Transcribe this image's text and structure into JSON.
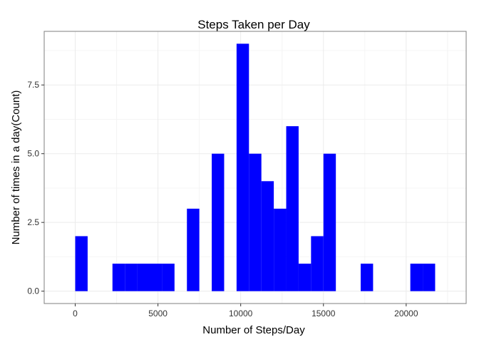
{
  "chart_data": {
    "type": "bar",
    "title": "Steps Taken per Day",
    "xlabel": "Number of Steps/Day",
    "ylabel": "Number of times in a day(Count)",
    "bar_color": "#0000ff",
    "bin_width": 750,
    "xlim": [
      -1875,
      23625
    ],
    "ylim": [
      -0.45,
      9.45
    ],
    "x_ticks": [
      0,
      5000,
      10000,
      15000,
      20000
    ],
    "x_tick_labels": [
      "0",
      "5000",
      "10000",
      "15000",
      "20000"
    ],
    "y_ticks": [
      0,
      2.5,
      5,
      7.5
    ],
    "y_tick_labels": [
      "0.0",
      "2.5",
      "5.0",
      "7.5"
    ],
    "grid": true,
    "bins": [
      {
        "x": 0,
        "count": 2
      },
      {
        "x": 750,
        "count": 0
      },
      {
        "x": 1500,
        "count": 0
      },
      {
        "x": 2250,
        "count": 1
      },
      {
        "x": 3000,
        "count": 1
      },
      {
        "x": 3750,
        "count": 1
      },
      {
        "x": 4500,
        "count": 1
      },
      {
        "x": 5250,
        "count": 1
      },
      {
        "x": 6000,
        "count": 0
      },
      {
        "x": 6750,
        "count": 3
      },
      {
        "x": 7500,
        "count": 0
      },
      {
        "x": 8250,
        "count": 5
      },
      {
        "x": 9000,
        "count": 0
      },
      {
        "x": 9750,
        "count": 9
      },
      {
        "x": 10500,
        "count": 5
      },
      {
        "x": 11250,
        "count": 4
      },
      {
        "x": 12000,
        "count": 3
      },
      {
        "x": 12750,
        "count": 6
      },
      {
        "x": 13500,
        "count": 1
      },
      {
        "x": 14250,
        "count": 2
      },
      {
        "x": 15000,
        "count": 5
      },
      {
        "x": 15750,
        "count": 0
      },
      {
        "x": 16500,
        "count": 0
      },
      {
        "x": 17250,
        "count": 1
      },
      {
        "x": 18000,
        "count": 0
      },
      {
        "x": 18750,
        "count": 0
      },
      {
        "x": 19500,
        "count": 0
      },
      {
        "x": 20250,
        "count": 1
      },
      {
        "x": 21000,
        "count": 1
      }
    ]
  }
}
